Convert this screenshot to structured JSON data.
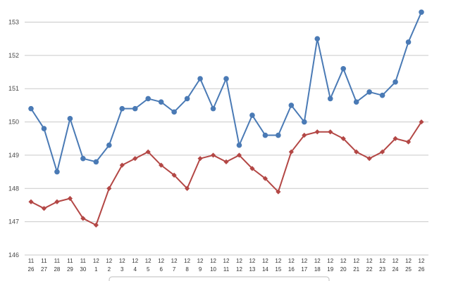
{
  "chart_data": {
    "type": "line",
    "title": "",
    "xlabel": "",
    "ylabel": "",
    "ylim": [
      146,
      153.3
    ],
    "yticks": [
      146,
      147,
      148,
      149,
      150,
      151,
      152,
      153
    ],
    "grid": true,
    "categories": [
      "11/26",
      "11/27",
      "11/28",
      "11/29",
      "11/30",
      "12/1",
      "12/2",
      "12/3",
      "12/4",
      "12/5",
      "12/6",
      "12/7",
      "12/8",
      "12/9",
      "12/10",
      "12/11",
      "12/12",
      "12/13",
      "12/14",
      "12/15",
      "12/16",
      "12/17",
      "12/18",
      "12/19",
      "12/20",
      "12/21",
      "12/22",
      "12/23",
      "12/24",
      "12/25",
      "12/26"
    ],
    "series": [
      {
        "color": "#4a7ab5",
        "marker": "circle",
        "values": [
          150.4,
          149.8,
          148.5,
          150.1,
          148.9,
          148.8,
          149.3,
          150.4,
          150.4,
          150.7,
          150.6,
          150.3,
          150.7,
          151.3,
          150.4,
          151.3,
          149.3,
          150.2,
          149.6,
          149.6,
          150.5,
          150.0,
          152.5,
          150.7,
          151.6,
          150.6,
          150.9,
          150.8,
          151.2,
          152.4,
          153.3
        ]
      },
      {
        "color": "#b34745",
        "marker": "diamond",
        "values": [
          147.6,
          147.4,
          147.6,
          147.7,
          147.1,
          146.9,
          148.0,
          148.7,
          148.9,
          149.1,
          148.7,
          148.4,
          148.0,
          148.9,
          149.0,
          148.8,
          149.0,
          148.6,
          148.3,
          147.9,
          149.1,
          149.6,
          149.7,
          149.7,
          149.5,
          149.1,
          148.9,
          149.1,
          149.5,
          149.4,
          150.0
        ]
      }
    ]
  }
}
